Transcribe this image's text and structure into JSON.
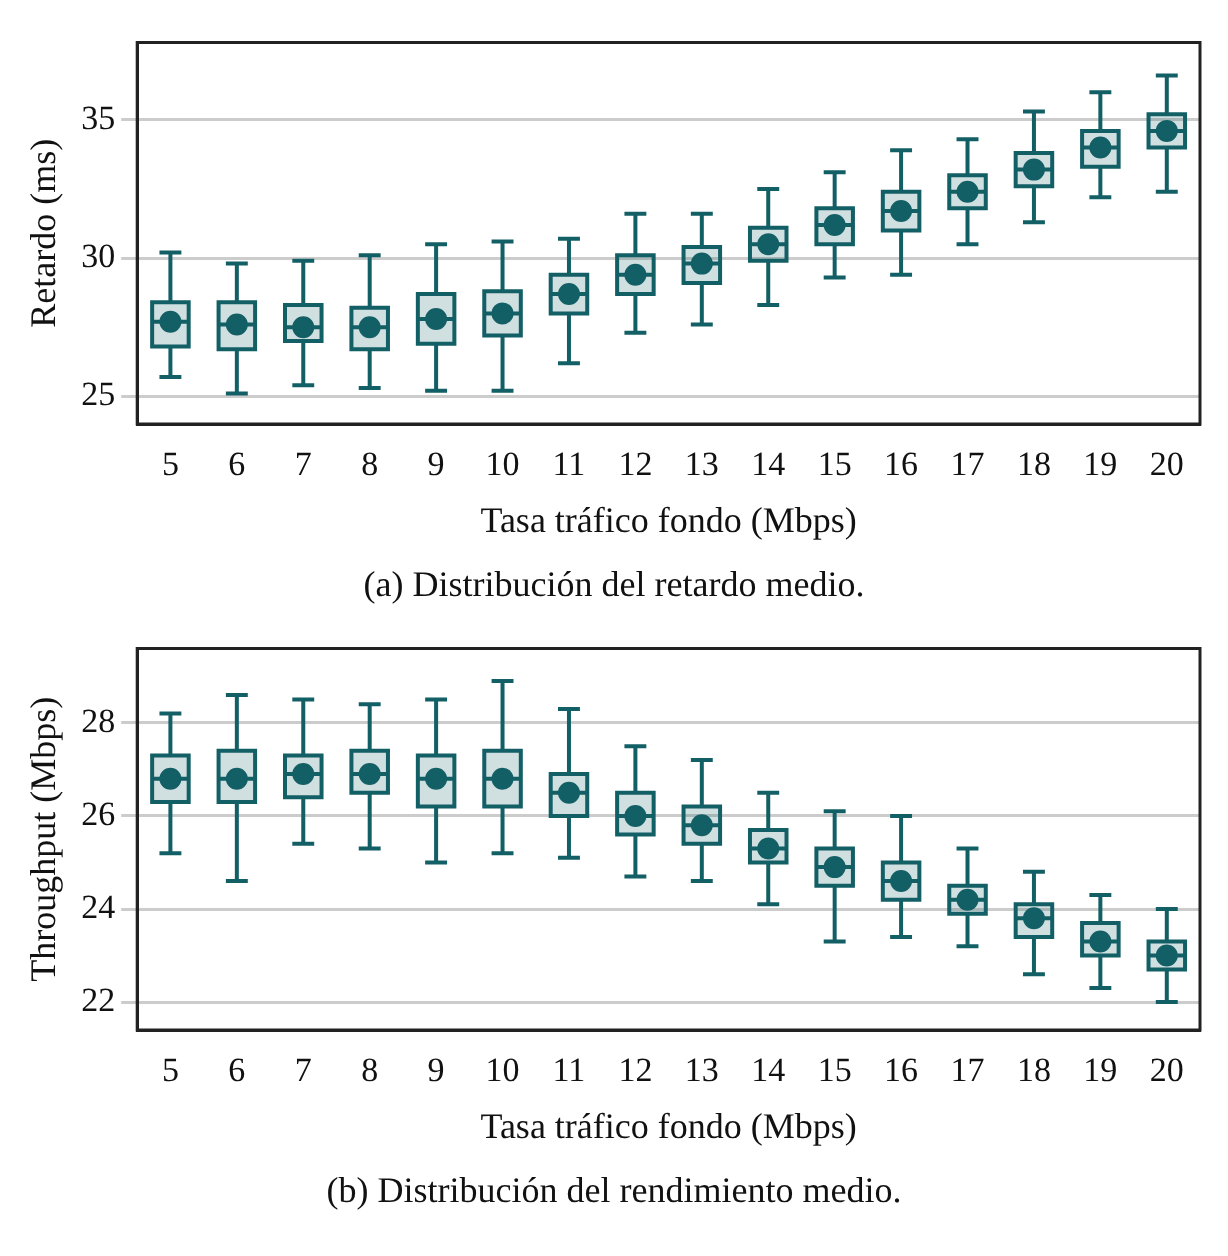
{
  "chart_data": [
    {
      "type": "box",
      "xlabel": "Tasa tráfico fondo (Mbps)",
      "ylabel": "Retardo (ms)",
      "annotations": [
        "(a) Distribución del retardo medio."
      ],
      "categories": [
        "5",
        "6",
        "7",
        "8",
        "9",
        "10",
        "11",
        "12",
        "13",
        "14",
        "15",
        "16",
        "17",
        "18",
        "19",
        "20"
      ],
      "ylim": [
        24,
        37.8
      ],
      "yticks": [
        25,
        30,
        35
      ],
      "grid": "y",
      "marker": "circle",
      "series": [
        {
          "color": "#135f66",
          "boxes": [
            {
              "low": 25.7,
              "q1": 26.8,
              "median": 27.7,
              "q3": 28.4,
              "high": 30.2,
              "mean": 27.7
            },
            {
              "low": 25.1,
              "q1": 26.7,
              "median": 27.6,
              "q3": 28.4,
              "high": 29.8,
              "mean": 27.6
            },
            {
              "low": 25.4,
              "q1": 27.0,
              "median": 27.5,
              "q3": 28.3,
              "high": 29.9,
              "mean": 27.5
            },
            {
              "low": 25.3,
              "q1": 26.7,
              "median": 27.5,
              "q3": 28.2,
              "high": 30.1,
              "mean": 27.5
            },
            {
              "low": 25.2,
              "q1": 26.9,
              "median": 27.8,
              "q3": 28.7,
              "high": 30.5,
              "mean": 27.8
            },
            {
              "low": 25.2,
              "q1": 27.2,
              "median": 28.0,
              "q3": 28.8,
              "high": 30.6,
              "mean": 28.0
            },
            {
              "low": 26.2,
              "q1": 28.0,
              "median": 28.7,
              "q3": 29.4,
              "high": 30.7,
              "mean": 28.7
            },
            {
              "low": 27.3,
              "q1": 28.7,
              "median": 29.4,
              "q3": 30.1,
              "high": 31.6,
              "mean": 29.4
            },
            {
              "low": 27.6,
              "q1": 29.1,
              "median": 29.8,
              "q3": 30.4,
              "high": 31.6,
              "mean": 29.8
            },
            {
              "low": 28.3,
              "q1": 29.9,
              "median": 30.5,
              "q3": 31.1,
              "high": 32.5,
              "mean": 30.5
            },
            {
              "low": 29.3,
              "q1": 30.5,
              "median": 31.2,
              "q3": 31.8,
              "high": 33.1,
              "mean": 31.2
            },
            {
              "low": 29.4,
              "q1": 31.0,
              "median": 31.7,
              "q3": 32.4,
              "high": 33.9,
              "mean": 31.7
            },
            {
              "low": 30.5,
              "q1": 31.8,
              "median": 32.4,
              "q3": 33.0,
              "high": 34.3,
              "mean": 32.4
            },
            {
              "low": 31.3,
              "q1": 32.6,
              "median": 33.2,
              "q3": 33.8,
              "high": 35.3,
              "mean": 33.2
            },
            {
              "low": 32.2,
              "q1": 33.3,
              "median": 34.0,
              "q3": 34.6,
              "high": 36.0,
              "mean": 34.0
            },
            {
              "low": 32.4,
              "q1": 34.0,
              "median": 34.6,
              "q3": 35.2,
              "high": 36.6,
              "mean": 34.6
            }
          ]
        }
      ]
    },
    {
      "type": "box",
      "xlabel": "Tasa tráfico fondo (Mbps)",
      "ylabel": "Throughput (Mbps)",
      "annotations": [
        "(b) Distribución del rendimiento medio."
      ],
      "categories": [
        "5",
        "6",
        "7",
        "8",
        "9",
        "10",
        "11",
        "12",
        "13",
        "14",
        "15",
        "16",
        "17",
        "18",
        "19",
        "20"
      ],
      "ylim": [
        21.4,
        29.6
      ],
      "yticks": [
        22,
        24,
        26,
        28
      ],
      "grid": "y",
      "marker": "circle",
      "series": [
        {
          "color": "#135f66",
          "boxes": [
            {
              "low": 25.2,
              "q1": 26.3,
              "median": 26.8,
              "q3": 27.3,
              "high": 28.2,
              "mean": 26.8
            },
            {
              "low": 24.6,
              "q1": 26.3,
              "median": 26.8,
              "q3": 27.4,
              "high": 28.6,
              "mean": 26.8
            },
            {
              "low": 25.4,
              "q1": 26.4,
              "median": 26.9,
              "q3": 27.3,
              "high": 28.5,
              "mean": 26.9
            },
            {
              "low": 25.3,
              "q1": 26.5,
              "median": 26.9,
              "q3": 27.4,
              "high": 28.4,
              "mean": 26.9
            },
            {
              "low": 25.0,
              "q1": 26.2,
              "median": 26.8,
              "q3": 27.3,
              "high": 28.5,
              "mean": 26.8
            },
            {
              "low": 25.2,
              "q1": 26.2,
              "median": 26.8,
              "q3": 27.4,
              "high": 28.9,
              "mean": 26.8
            },
            {
              "low": 25.1,
              "q1": 26.0,
              "median": 26.5,
              "q3": 26.9,
              "high": 28.3,
              "mean": 26.5
            },
            {
              "low": 24.7,
              "q1": 25.6,
              "median": 26.0,
              "q3": 26.5,
              "high": 27.5,
              "mean": 26.0
            },
            {
              "low": 24.6,
              "q1": 25.4,
              "median": 25.8,
              "q3": 26.2,
              "high": 27.2,
              "mean": 25.8
            },
            {
              "low": 24.1,
              "q1": 25.0,
              "median": 25.3,
              "q3": 25.7,
              "high": 26.5,
              "mean": 25.3
            },
            {
              "low": 23.3,
              "q1": 24.5,
              "median": 24.9,
              "q3": 25.3,
              "high": 26.1,
              "mean": 24.9
            },
            {
              "low": 23.4,
              "q1": 24.2,
              "median": 24.6,
              "q3": 25.0,
              "high": 26.0,
              "mean": 24.6
            },
            {
              "low": 23.2,
              "q1": 23.9,
              "median": 24.2,
              "q3": 24.5,
              "high": 25.3,
              "mean": 24.2
            },
            {
              "low": 22.6,
              "q1": 23.4,
              "median": 23.8,
              "q3": 24.1,
              "high": 24.8,
              "mean": 23.8
            },
            {
              "low": 22.3,
              "q1": 23.0,
              "median": 23.3,
              "q3": 23.7,
              "high": 24.3,
              "mean": 23.3
            },
            {
              "low": 22.0,
              "q1": 22.7,
              "median": 23.0,
              "q3": 23.3,
              "high": 24.0,
              "mean": 23.0
            }
          ]
        }
      ]
    }
  ]
}
